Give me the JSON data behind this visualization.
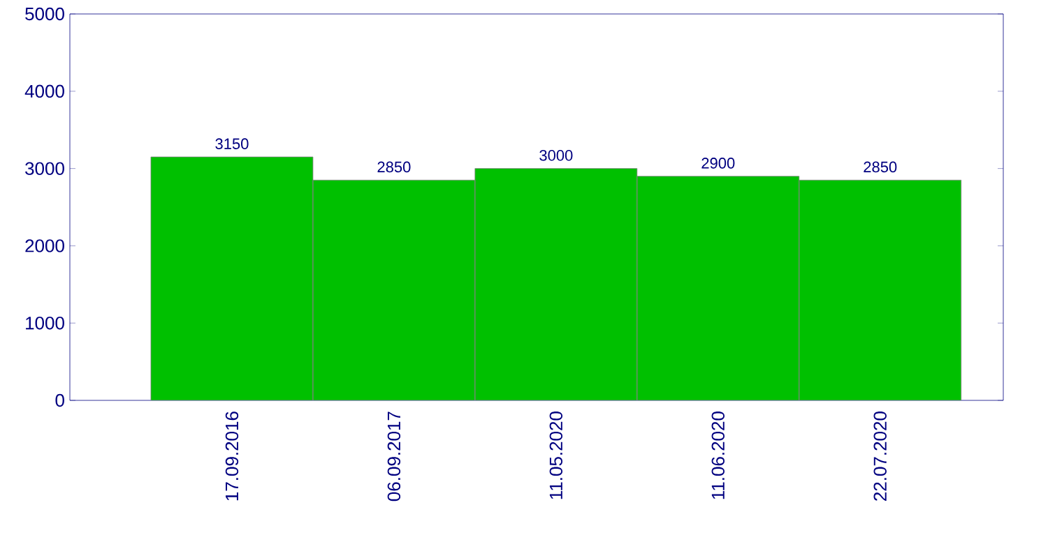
{
  "chart_data": {
    "type": "bar",
    "categories": [
      "17.09.2016",
      "06.09.2017",
      "11.05.2020",
      "11.06.2020",
      "22.07.2020"
    ],
    "values": [
      3150,
      2850,
      3000,
      2900,
      2850
    ],
    "color": "#00c000",
    "ylim": [
      0,
      5000
    ],
    "yticks": [
      0,
      1000,
      2000,
      3000,
      4000,
      5000
    ],
    "data_labels": true
  }
}
